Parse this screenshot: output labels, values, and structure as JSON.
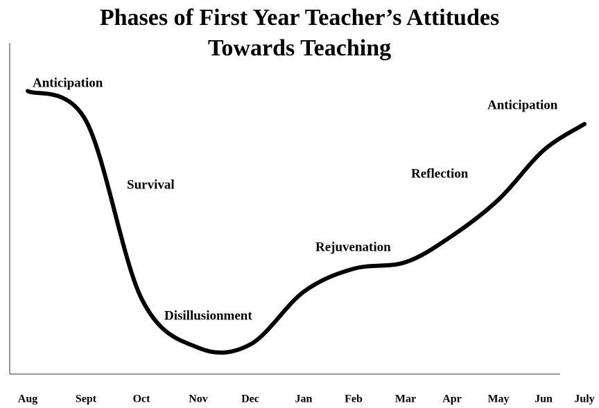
{
  "chart_data": {
    "type": "line",
    "title": "Phases of First Year Teacher’s Attitudes Towards Teaching",
    "categories": [
      "Aug",
      "Sept",
      "Oct",
      "Nov",
      "Dec",
      "Jan",
      "Feb",
      "Mar",
      "Apr",
      "May",
      "Jun",
      "July"
    ],
    "values": [
      86,
      77,
      23,
      8,
      9,
      25,
      32,
      34,
      42,
      53,
      68,
      76
    ],
    "color": "#000000",
    "ylim": [
      0,
      100
    ],
    "annotations": [
      "Anticipation",
      "Survival",
      "Disillusionment",
      "Rejuvenation",
      "Reflection",
      "Anticipation"
    ]
  }
}
